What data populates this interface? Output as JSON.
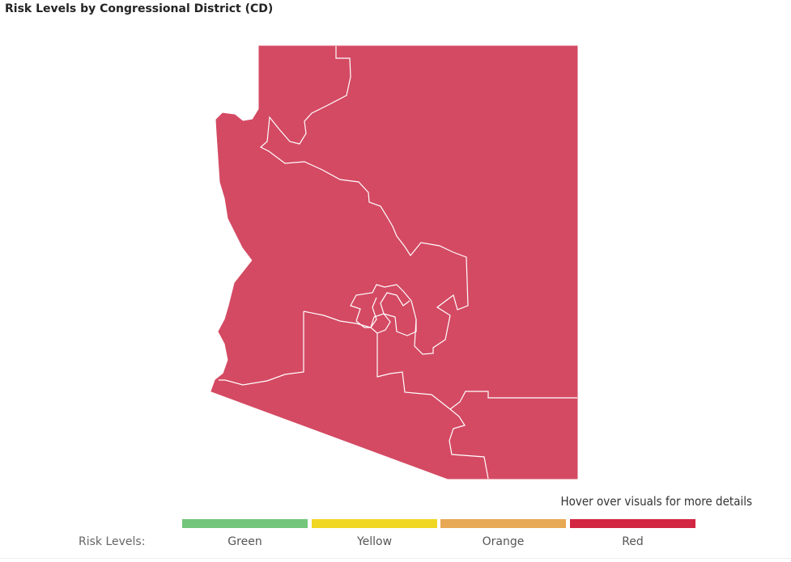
{
  "title": "Risk Levels by Congressional District (CD)",
  "map": {
    "region": "Arizona",
    "district_color": "#d44a63",
    "boundary_color": "#ffffff",
    "districts_risk_level": "Red"
  },
  "hover_hint": "Hover over visuals for more details",
  "legend": {
    "label": "Risk Levels:",
    "items": [
      {
        "label": "Green",
        "color": "#73c57b"
      },
      {
        "label": "Yellow",
        "color": "#f0d722"
      },
      {
        "label": "Orange",
        "color": "#e8a955"
      },
      {
        "label": "Red",
        "color": "#d32642"
      }
    ]
  }
}
